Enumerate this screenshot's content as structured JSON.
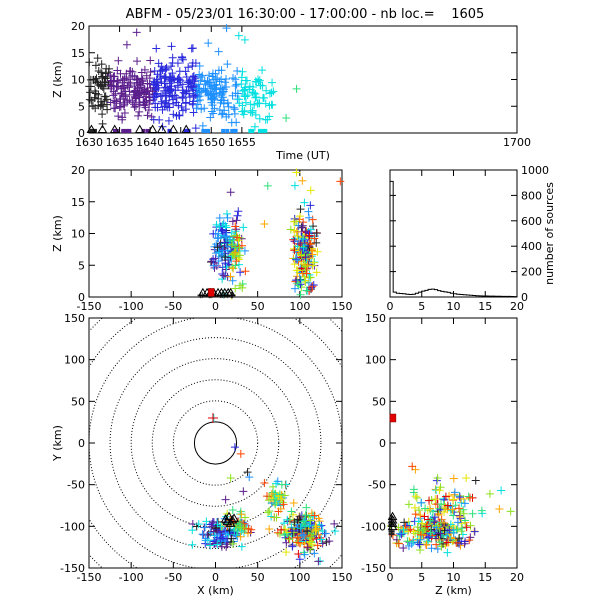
{
  "figure": {
    "title": "ABFM - 05/23/01 16:30:00 - 17:00:00 - nb loc.=    1605",
    "colormap": [
      "#222222",
      "#5b1e8c",
      "#2a2adc",
      "#1e90ff",
      "#00e0e0",
      "#2ee07a",
      "#8ce01e",
      "#e6e600",
      "#ffa500",
      "#ff4500",
      "#e00000"
    ]
  },
  "chart_data": [
    {
      "id": "time_height",
      "type": "scatter",
      "xlabel": "Time (UT)",
      "ylabel": "Z (km)",
      "xlim": [
        1630,
        1700
      ],
      "ylim": [
        0,
        20
      ],
      "xticks": [
        1630,
        1635,
        1640,
        1645,
        1650,
        1655,
        1700
      ],
      "xtick_labels": [
        "1630",
        "1635",
        "1640",
        "1645",
        "1650",
        "1655",
        "1700"
      ],
      "yticks": [
        0,
        5,
        10,
        15,
        20
      ],
      "marker": "+ colored by time",
      "clusters": [
        {
          "x": 1633,
          "y": 8,
          "sx": 2.5,
          "sy": 2.4,
          "n": 110
        },
        {
          "x": 1638,
          "y": 8,
          "sx": 2.5,
          "sy": 2.4,
          "n": 110
        },
        {
          "x": 1643,
          "y": 8,
          "sx": 2.5,
          "sy": 2.6,
          "n": 110
        },
        {
          "x": 1648,
          "y": 8,
          "sx": 2.3,
          "sy": 2.4,
          "n": 90
        },
        {
          "x": 1652,
          "y": 7,
          "sx": 2.0,
          "sy": 2.4,
          "n": 60
        },
        {
          "x": 1657,
          "y": 6.5,
          "sx": 2.2,
          "sy": 2.2,
          "n": 70
        }
      ],
      "sparse": [
        {
          "x": 1636.2,
          "y": 16.5
        },
        {
          "x": 1637.8,
          "y": 18.8
        },
        {
          "x": 1641,
          "y": 15.8
        },
        {
          "x": 1643.5,
          "y": 16.2
        },
        {
          "x": 1645.2,
          "y": 14.2
        },
        {
          "x": 1646.8,
          "y": 15.8
        },
        {
          "x": 1649.5,
          "y": 16.8
        },
        {
          "x": 1652.5,
          "y": 19.6
        },
        {
          "x": 1654.5,
          "y": 18.2
        },
        {
          "x": 1655.5,
          "y": 17.4
        },
        {
          "x": 1634.8,
          "y": 13.5
        },
        {
          "x": 1651.2,
          "y": 15.2
        }
      ],
      "ground_points": {
        "y": 0.2,
        "n": 30,
        "x_range": [
          1630,
          1660
        ]
      },
      "triangles": {
        "y": 0.1,
        "x": [
          1630.4,
          1632.2,
          1634.2,
          1638.3,
          1640.4,
          1641.9,
          1643.8,
          1645.9
        ]
      }
    },
    {
      "id": "x_height",
      "type": "scatter",
      "xlabel": "",
      "ylabel": "Z (km)",
      "xlim": [
        -150,
        150
      ],
      "ylim": [
        0,
        20
      ],
      "xticks": [
        -150,
        -100,
        -50,
        0,
        50,
        100,
        150
      ],
      "yticks": [
        0,
        5,
        10,
        15,
        20
      ],
      "clusters": [
        {
          "x": 10,
          "y": 8,
          "sx": 9,
          "sy": 2.6,
          "n": 120,
          "cmin": 0.0,
          "cmax": 0.45
        },
        {
          "x": 25,
          "y": 7,
          "sx": 5,
          "sy": 2.0,
          "n": 40,
          "cmin": 0.4,
          "cmax": 0.95
        },
        {
          "x": 105,
          "y": 7,
          "sx": 7,
          "sy": 3.0,
          "n": 190,
          "cmin": 0.0,
          "cmax": 1.0
        }
      ],
      "sparse": [
        {
          "x": 18,
          "y": 16.5
        },
        {
          "x": 27,
          "y": 13.5
        },
        {
          "x": 62,
          "y": 17.5
        },
        {
          "x": 96,
          "y": 19.6
        },
        {
          "x": 103,
          "y": 18.3
        },
        {
          "x": 113,
          "y": 16.8
        },
        {
          "x": 148,
          "y": 18.2
        },
        {
          "x": 58,
          "y": 11.5
        }
      ],
      "ground_points": {
        "y": 0.3,
        "n": 15,
        "x_range": [
          -18,
          22
        ]
      },
      "triangles": {
        "y": 0.2,
        "x": [
          -15,
          -10,
          -6,
          -2,
          3,
          7,
          11,
          15,
          18
        ]
      },
      "red_square": {
        "x": -5,
        "y": 0.4
      }
    },
    {
      "id": "height_histogram",
      "type": "bar",
      "xlabel": "",
      "ylabel": "number of sources",
      "xlim": [
        0,
        20
      ],
      "ylim": [
        0,
        1000
      ],
      "xticks": [
        0,
        5,
        10,
        15,
        20
      ],
      "yticks": [
        0,
        200,
        400,
        600,
        800,
        1000
      ],
      "bin_width": 0.5,
      "values": [
        910,
        38,
        30,
        28,
        26,
        22,
        20,
        22,
        30,
        38,
        46,
        52,
        60,
        62,
        58,
        50,
        44,
        40,
        36,
        30,
        26,
        22,
        20,
        18,
        16,
        14,
        12,
        10,
        9,
        8,
        8,
        7,
        7,
        6,
        6,
        5,
        5,
        5,
        4,
        3
      ]
    },
    {
      "id": "plan_view",
      "type": "scatter",
      "xlabel": "X (km)",
      "ylabel": "Y (km)",
      "xlim": [
        -150,
        150
      ],
      "ylim": [
        -150,
        150
      ],
      "xticks": [
        -150,
        -100,
        -50,
        0,
        50,
        100,
        150
      ],
      "yticks": [
        -150,
        -100,
        -50,
        0,
        50,
        100,
        150
      ],
      "range_rings_km": [
        25,
        50,
        75,
        100,
        125,
        150,
        175,
        200
      ],
      "clusters": [
        {
          "x": 105,
          "y": -105,
          "sx": 11,
          "sy": 11,
          "n": 220,
          "cmin": 0.0,
          "cmax": 1.0
        },
        {
          "x": 72,
          "y": -68,
          "sx": 7,
          "sy": 10,
          "n": 50,
          "cmin": 0.3,
          "cmax": 0.9
        },
        {
          "x": 5,
          "y": -108,
          "sx": 14,
          "sy": 9,
          "n": 110,
          "cmin": 0.0,
          "cmax": 0.45
        },
        {
          "x": 25,
          "y": -100,
          "sx": 8,
          "sy": 7,
          "n": 40,
          "cmin": 0.4,
          "cmax": 0.95
        }
      ],
      "sparse": [
        {
          "x": -2,
          "y": 30
        },
        {
          "x": 23,
          "y": -5
        },
        {
          "x": 30,
          "y": -13
        },
        {
          "x": 38,
          "y": -35
        },
        {
          "x": 33,
          "y": -58
        },
        {
          "x": 40,
          "y": -41
        },
        {
          "x": 18,
          "y": -42
        },
        {
          "x": 12,
          "y": -68
        },
        {
          "x": 58,
          "y": -48
        },
        {
          "x": 122,
          "y": -142
        }
      ],
      "triangles": [
        {
          "x": 12,
          "y": -95
        },
        {
          "x": 16,
          "y": -92
        },
        {
          "x": 20,
          "y": -96
        },
        {
          "x": 18,
          "y": -100
        },
        {
          "x": 14,
          "y": -98
        },
        {
          "x": 22,
          "y": -94
        }
      ],
      "red_marker": {
        "x": -3,
        "y": 30
      }
    },
    {
      "id": "height_y",
      "type": "scatter",
      "xlabel": "Z (km)",
      "ylabel": "",
      "xlim": [
        0,
        20
      ],
      "ylim": [
        -150,
        150
      ],
      "xticks": [
        0,
        5,
        10,
        15,
        20
      ],
      "yticks": [
        -150,
        -100,
        -50,
        0,
        50,
        100,
        150
      ],
      "clusters": [
        {
          "x": 7,
          "y": -105,
          "sx": 3.0,
          "sy": 10,
          "n": 220,
          "cmin": 0.0,
          "cmax": 1.0
        },
        {
          "x": 9,
          "y": -70,
          "sx": 3.2,
          "sy": 10,
          "n": 60,
          "cmin": 0.2,
          "cmax": 1.0
        }
      ],
      "sparse": [
        {
          "x": 4,
          "y": -32
        },
        {
          "x": 7.5,
          "y": -42
        },
        {
          "x": 12,
          "y": -42
        },
        {
          "x": 13.5,
          "y": -45
        },
        {
          "x": 17.5,
          "y": -57
        },
        {
          "x": 19,
          "y": -82
        },
        {
          "x": 11,
          "y": -65
        },
        {
          "x": 3.5,
          "y": -28
        }
      ],
      "ground_points": {
        "x": 0.25,
        "n": 12,
        "y_range": [
          -112,
          -88
        ]
      },
      "triangles": [
        {
          "x": 0.4,
          "y": -96
        },
        {
          "x": 0.4,
          "y": -100
        },
        {
          "x": 0.4,
          "y": -104
        },
        {
          "x": 0.4,
          "y": -92
        }
      ],
      "red_square": {
        "x": 0.3,
        "y": 30
      }
    }
  ]
}
